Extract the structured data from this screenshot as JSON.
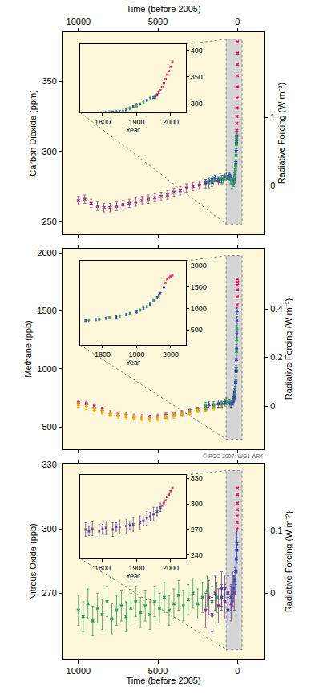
{
  "chart_data": [
    {
      "type": "scatter",
      "x_label": "Time (before 2005)",
      "y_label": "Carbon Dioxide (ppm)",
      "y2_label": "Radiative Forcing (W m⁻²)",
      "xlim": [
        11000,
        -1700
      ],
      "xticks": [
        10000,
        5000,
        0
      ],
      "ylim": [
        241,
        385
      ],
      "yticks": [
        250,
        300,
        350
      ],
      "y2lim": [
        -0.72,
        2.25
      ],
      "y2ticks": [
        0,
        1
      ],
      "series": [
        {
          "color": "#9c3b95",
          "error": 3,
          "x": [
            10000,
            9600,
            9200,
            8800,
            8400,
            8000,
            7600,
            7200,
            6800,
            6400,
            6000,
            5600,
            5200,
            4800,
            4400,
            4000,
            3600,
            3200,
            2800,
            2400,
            2000,
            1600,
            1200,
            1000
          ],
          "values": [
            265,
            266,
            263,
            261,
            260,
            260,
            261,
            262,
            263,
            264,
            265,
            266,
            267,
            268,
            269,
            271,
            272,
            274,
            275,
            276,
            277,
            278,
            279,
            280
          ]
        },
        {
          "color": "#3a46a8",
          "error": 2,
          "x": [
            2000,
            1800,
            1600,
            1400,
            1200,
            1000,
            800,
            600,
            500,
            400,
            300,
            250,
            200,
            150,
            100,
            80,
            60,
            50
          ],
          "values": [
            278,
            279,
            280,
            281,
            280,
            280,
            282,
            281,
            283,
            281,
            278,
            277,
            280,
            284,
            292,
            300,
            307,
            311
          ]
        },
        {
          "color": "#2e9b5c",
          "error": 3,
          "x": [
            1800,
            1500,
            1100,
            900,
            700,
            450,
            350,
            230,
            180,
            130,
            110,
            90,
            70,
            55
          ],
          "values": [
            277,
            279,
            281,
            280,
            282,
            280,
            277,
            278,
            282,
            287,
            290,
            297,
            305,
            310
          ]
        },
        {
          "color": "#e6195e",
          "x": [
            47,
            40,
            35,
            30,
            25,
            20,
            15,
            10,
            5,
            1
          ],
          "values": [
            315,
            320,
            325,
            331,
            338,
            346,
            354,
            362,
            370,
            378
          ]
        }
      ],
      "inset": {
        "type": "scatter",
        "x_label": "Year",
        "xlim": [
          1734,
          2045
        ],
        "xticks": [
          1800,
          1900,
          2000
        ],
        "ylim": [
          283,
          412
        ],
        "yticks": [
          300,
          350,
          400
        ],
        "series": [
          {
            "color": "#3a46a8",
            "error": 2,
            "x": [
              1750,
              1770,
              1790,
              1810,
              1830,
              1850,
              1870,
              1890,
              1910,
              1930,
              1950,
              1960
            ],
            "values": [
              277,
              278,
              280,
              283,
              284,
              285,
              288,
              294,
              299,
              306,
              311,
              316
            ]
          },
          {
            "color": "#2e9b5c",
            "error": 3,
            "x": [
              1760,
              1780,
              1800,
              1820,
              1840,
              1860,
              1880,
              1900,
              1920,
              1940,
              1955
            ],
            "values": [
              278,
              279,
              281,
              283,
              284,
              286,
              291,
              296,
              302,
              310,
              313
            ]
          },
          {
            "color": "#e6195e",
            "x": [
              1958,
              1965,
              1970,
              1975,
              1980,
              1985,
              1990,
              1995,
              2000,
              2005
            ],
            "values": [
              315,
              320,
              325,
              331,
              338,
              346,
              354,
              361,
              369,
              379
            ]
          }
        ]
      }
    },
    {
      "type": "scatter",
      "y_label": "Methane (ppb)",
      "y2_label": "Radiative Forcing (W m⁻²)",
      "tick_labels": "y",
      "xlim": [
        11000,
        -1700
      ],
      "xticks": [
        10000,
        5000,
        0
      ],
      "ylim": [
        307,
        2035
      ],
      "yticks": [
        500,
        1000,
        1500,
        2000
      ],
      "y2lim": [
        -0.178,
        0.648
      ],
      "y2ticks": [
        0,
        0.2,
        0.4
      ],
      "annotations": [
        {
          "text": "©IPCC 2007: WG1-AR4"
        }
      ],
      "series": [
        {
          "color": "#9c3b95",
          "error": 20,
          "x": [
            10000,
            9500,
            9000,
            8500,
            8000,
            7500,
            7000,
            6500,
            6000,
            5500,
            5000,
            4500,
            4000,
            3500,
            3000,
            2500,
            2000,
            1500,
            1000
          ],
          "values": [
            710,
            700,
            680,
            650,
            620,
            610,
            600,
            590,
            585,
            580,
            590,
            600,
            610,
            620,
            640,
            650,
            660,
            680,
            700
          ]
        },
        {
          "color": "#f2a900",
          "error": 20,
          "x": [
            10000,
            9500,
            9000,
            8500,
            8000,
            7500,
            7000,
            6500,
            6000,
            5500,
            5000,
            4500,
            4000,
            3500,
            3000,
            2500,
            2000,
            1500,
            1000
          ],
          "values": [
            690,
            670,
            650,
            630,
            610,
            595,
            590,
            580,
            570,
            565,
            570,
            580,
            595,
            610,
            620,
            640,
            650,
            665,
            680
          ]
        },
        {
          "color": "#2e9b5c",
          "error": 30,
          "x": [
            2000,
            1500,
            1000,
            700,
            500,
            300,
            250,
            200,
            150,
            100,
            80,
            60,
            50,
            40
          ],
          "values": [
            680,
            690,
            700,
            720,
            710,
            720,
            730,
            760,
            820,
            900,
            1000,
            1150,
            1250,
            1350
          ]
        },
        {
          "color": "#3a46a8",
          "error": 30,
          "x": [
            1800,
            1200,
            800,
            400,
            280,
            220,
            170,
            120,
            90,
            70,
            55,
            45,
            35,
            30
          ],
          "values": [
            690,
            700,
            710,
            700,
            720,
            750,
            800,
            880,
            980,
            1080,
            1180,
            1300,
            1420,
            1500
          ]
        },
        {
          "color": "#e6195e",
          "x": [
            25,
            20,
            15,
            10,
            5,
            1
          ],
          "values": [
            1550,
            1620,
            1680,
            1720,
            1745,
            1774
          ]
        }
      ],
      "inset": {
        "type": "scatter",
        "x_label": "Year",
        "xlim": [
          1734,
          2045
        ],
        "xticks": [
          1800,
          1900,
          2000
        ],
        "ylim": [
          144,
          2112
        ],
        "yticks": [
          500,
          1000,
          1500,
          2000
        ],
        "series": [
          {
            "color": "#3a46a8",
            "error": 30,
            "x": [
              1750,
              1780,
              1810,
              1840,
              1870,
              1900,
              1920,
              1940,
              1960,
              1970,
              1980
            ],
            "values": [
              720,
              740,
              770,
              800,
              860,
              920,
              1000,
              1100,
              1250,
              1350,
              1500
            ]
          },
          {
            "color": "#2e9b5c",
            "error": 30,
            "x": [
              1760,
              1790,
              1820,
              1850,
              1880,
              1910,
              1930,
              1950,
              1965
            ],
            "values": [
              730,
              745,
              780,
              820,
              880,
              960,
              1040,
              1180,
              1290
            ]
          },
          {
            "color": "#e6195e",
            "x": [
              1985,
              1990,
              1995,
              2000,
              2005
            ],
            "values": [
              1600,
              1680,
              1720,
              1750,
              1774
            ]
          }
        ]
      }
    },
    {
      "type": "scatter",
      "x_label": "Time (before 2005)",
      "y_label": "Nitrous Oxide (ppb)",
      "y2_label": "Radiative Forcing (W m⁻²)",
      "xlim": [
        11000,
        -1700
      ],
      "xticks": [
        10000,
        5000,
        0
      ],
      "ylim": [
        239,
        330.4
      ],
      "yticks": [
        270,
        300,
        330
      ],
      "y2lim": [
        -0.105,
        0.205
      ],
      "y2ticks": [
        0,
        0.1
      ],
      "series": [
        {
          "color": "#2e9b5c",
          "error": 7,
          "x": [
            10000,
            9700,
            9400,
            9100,
            8800,
            8500,
            8200,
            7900,
            7600,
            7300,
            7000,
            6700,
            6400,
            6100,
            5800,
            5500,
            5200,
            4900,
            4600,
            4300,
            4000,
            3700,
            3400,
            3100,
            2800,
            2500,
            2200,
            1900,
            1600,
            1300
          ],
          "values": [
            262,
            259,
            265,
            257,
            263,
            260,
            266,
            258,
            262,
            264,
            259,
            263,
            266,
            261,
            264,
            260,
            266,
            263,
            268,
            262,
            265,
            269,
            264,
            267,
            270,
            265,
            268,
            271,
            266,
            268
          ]
        },
        {
          "color": "#7e3a8a",
          "error": 8,
          "x": [
            2000,
            1800,
            1600,
            1400,
            1200,
            1000,
            800,
            600,
            400,
            300,
            200
          ],
          "values": [
            262,
            268,
            260,
            270,
            264,
            272,
            266,
            270,
            265,
            272,
            270
          ]
        },
        {
          "color": "#3a46a8",
          "error": 6,
          "x": [
            1000,
            800,
            600,
            400,
            250,
            150,
            100,
            70,
            50,
            40
          ],
          "values": [
            268,
            272,
            262,
            268,
            272,
            276,
            280,
            286,
            290,
            293
          ]
        },
        {
          "color": "#e6195e",
          "x": [
            30,
            25,
            20,
            15,
            10,
            5,
            1
          ],
          "values": [
            300,
            303,
            306,
            309,
            312,
            316,
            319
          ]
        }
      ],
      "inset": {
        "type": "scatter",
        "x_label": "Year",
        "xlim": [
          1734,
          2045
        ],
        "xticks": [
          1800,
          1900,
          2000
        ],
        "ylim": [
          236,
          334
        ],
        "yticks": [
          240,
          270,
          300,
          330
        ],
        "series": [
          {
            "color": "#7e3a8a",
            "error": 8,
            "x": [
              1750,
              1770,
              1790,
              1810,
              1830,
              1850,
              1870,
              1890,
              1910,
              1930,
              1950
            ],
            "values": [
              270,
              271,
              268,
              272,
              270,
              273,
              274,
              276,
              278,
              283,
              288
            ]
          },
          {
            "color": "#3a46a8",
            "error": 5,
            "x": [
              1760,
              1800,
              1840,
              1880,
              1920,
              1940,
              1960,
              1970
            ],
            "values": [
              268,
              271,
              273,
              275,
              280,
              285,
              291,
              296
            ]
          },
          {
            "color": "#e6195e",
            "x": [
              1975,
              1980,
              1985,
              1990,
              1995,
              2000,
              2005
            ],
            "values": [
              298,
              301,
              304,
              308,
              311,
              315,
              319
            ]
          }
        ]
      }
    }
  ]
}
